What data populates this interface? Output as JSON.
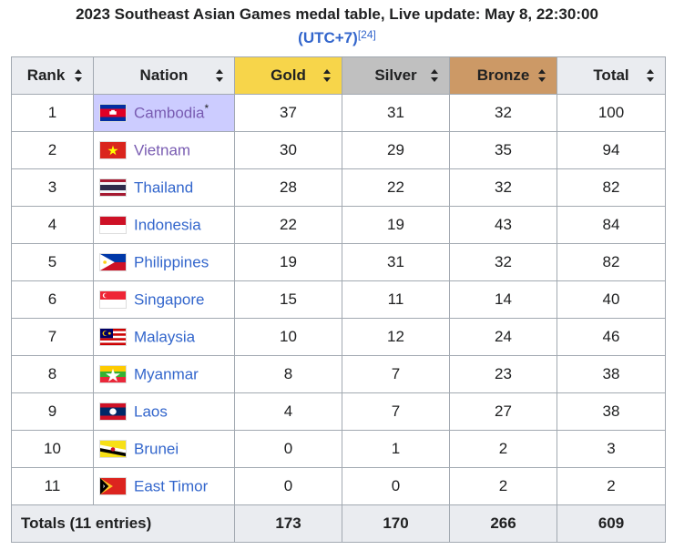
{
  "caption": {
    "text": "2023 Southeast Asian Games medal table, Live update: May 8, 22:30:00",
    "timezone": "(UTC+7)",
    "ref": "[24]"
  },
  "headers": {
    "rank": "Rank",
    "nation": "Nation",
    "gold": "Gold",
    "silver": "Silver",
    "bronze": "Bronze",
    "total": "Total"
  },
  "colors": {
    "gold": "#f7d54a",
    "silver": "#c0c0c0",
    "bronze": "#cc9966",
    "host": "#ccccff",
    "link": "#3366cc",
    "visited": "#795cb2"
  },
  "rows": [
    {
      "rank": "1",
      "nation": "Cambodia",
      "host_marker": "*",
      "flag": "cambodia-flag-icon",
      "gold": "37",
      "silver": "31",
      "bronze": "32",
      "total": "100"
    },
    {
      "rank": "2",
      "nation": "Vietnam",
      "flag": "vietnam-flag-icon",
      "gold": "30",
      "silver": "29",
      "bronze": "35",
      "total": "94"
    },
    {
      "rank": "3",
      "nation": "Thailand",
      "flag": "thailand-flag-icon",
      "gold": "28",
      "silver": "22",
      "bronze": "32",
      "total": "82"
    },
    {
      "rank": "4",
      "nation": "Indonesia",
      "flag": "indonesia-flag-icon",
      "gold": "22",
      "silver": "19",
      "bronze": "43",
      "total": "84"
    },
    {
      "rank": "5",
      "nation": "Philippines",
      "flag": "philippines-flag-icon",
      "gold": "19",
      "silver": "31",
      "bronze": "32",
      "total": "82"
    },
    {
      "rank": "6",
      "nation": "Singapore",
      "flag": "singapore-flag-icon",
      "gold": "15",
      "silver": "11",
      "bronze": "14",
      "total": "40"
    },
    {
      "rank": "7",
      "nation": "Malaysia",
      "flag": "malaysia-flag-icon",
      "gold": "10",
      "silver": "12",
      "bronze": "24",
      "total": "46"
    },
    {
      "rank": "8",
      "nation": "Myanmar",
      "flag": "myanmar-flag-icon",
      "gold": "8",
      "silver": "7",
      "bronze": "23",
      "total": "38"
    },
    {
      "rank": "9",
      "nation": "Laos",
      "flag": "laos-flag-icon",
      "gold": "4",
      "silver": "7",
      "bronze": "27",
      "total": "38"
    },
    {
      "rank": "10",
      "nation": "Brunei",
      "flag": "brunei-flag-icon",
      "gold": "0",
      "silver": "1",
      "bronze": "2",
      "total": "3"
    },
    {
      "rank": "11",
      "nation": "East Timor",
      "flag": "east-timor-flag-icon",
      "gold": "0",
      "silver": "0",
      "bronze": "2",
      "total": "2"
    }
  ],
  "totals": {
    "label": "Totals (11 entries)",
    "gold": "173",
    "silver": "170",
    "bronze": "266",
    "total": "609"
  }
}
